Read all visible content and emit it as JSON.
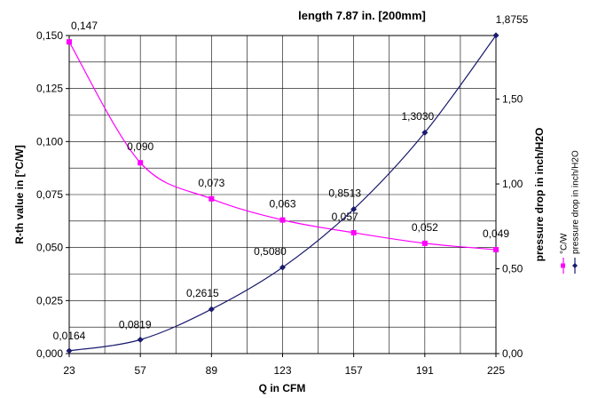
{
  "chart_data": {
    "type": "line",
    "title": "length 7.87 in. [200mm]",
    "xlabel": "Q in CFM",
    "ylabel": "R-th value in [°C/W]",
    "y2label": "pressure drop in inch/H2O",
    "categories": [
      "23",
      "57",
      "89",
      "123",
      "157",
      "191",
      "225"
    ],
    "x": [
      23,
      57,
      89,
      123,
      157,
      191,
      225
    ],
    "xlim": [
      23,
      225
    ],
    "ylim": [
      0,
      0.15
    ],
    "y2lim": [
      0,
      1.875
    ],
    "grid": true,
    "legend_position": "right-vertical",
    "yticks": [
      "0,000",
      "0,025",
      "0,050",
      "0,075",
      "0,100",
      "0,125",
      "0,150"
    ],
    "y2ticks": [
      "0,00",
      "0,50",
      "1,00",
      "1,50"
    ],
    "series": [
      {
        "name": "°C/W",
        "axis": "left",
        "color": "#ff00ff",
        "marker": "square",
        "values": [
          0.147,
          0.09,
          0.073,
          0.063,
          0.057,
          0.052,
          0.049
        ],
        "labels": [
          "0,147",
          "0,090",
          "0,073",
          "0,063",
          "0,057",
          "0,052",
          "0,049"
        ]
      },
      {
        "name": "pressure drop in inch/H2O",
        "axis": "right",
        "color": "#1a1a6e",
        "marker": "diamond",
        "values": [
          0.0164,
          0.0819,
          0.2615,
          0.508,
          0.8513,
          1.303,
          1.8755
        ],
        "labels": [
          "0,0164",
          "0,0819",
          "0,2615",
          "0,5080",
          "0,8513",
          "1,3030",
          "1,8755"
        ]
      }
    ]
  }
}
